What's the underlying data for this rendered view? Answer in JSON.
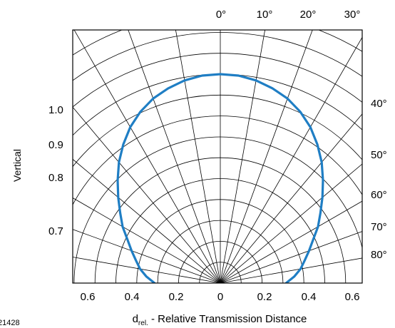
{
  "chart_data": {
    "type": "polar",
    "title": "",
    "xlabel_main": "d",
    "xlabel_sub": "rel.",
    "xlabel_rest": " - Relative Transmission Distance",
    "ylabel": "Vertical",
    "figure_id": "21428",
    "angle_tick_labels": [
      "0°",
      "10°",
      "20°",
      "30°",
      "40°",
      "50°",
      "60°",
      "70°",
      "80°"
    ],
    "y_tick_labels": [
      "1.0",
      "0.9",
      "0.8",
      "0.7"
    ],
    "x_tick_labels": [
      "0.6",
      "0.4",
      "0.2",
      "0",
      "0.2",
      "0.4",
      "0.6"
    ],
    "angle_range_deg": [
      -90,
      90
    ],
    "series": [
      {
        "color": "#1f7ec4",
        "points": [
          {
            "angle_deg": 0,
            "d_rel": 1.0
          },
          {
            "angle_deg": 5,
            "d_rel": 0.997
          },
          {
            "angle_deg": 10,
            "d_rel": 0.985
          },
          {
            "angle_deg": 15,
            "d_rel": 0.965
          },
          {
            "angle_deg": 20,
            "d_rel": 0.94
          },
          {
            "angle_deg": 25,
            "d_rel": 0.905
          },
          {
            "angle_deg": 30,
            "d_rel": 0.862
          },
          {
            "angle_deg": 35,
            "d_rel": 0.81
          },
          {
            "angle_deg": 40,
            "d_rel": 0.755
          },
          {
            "angle_deg": 45,
            "d_rel": 0.695
          },
          {
            "angle_deg": 50,
            "d_rel": 0.638
          },
          {
            "angle_deg": 55,
            "d_rel": 0.585
          },
          {
            "angle_deg": 60,
            "d_rel": 0.54
          },
          {
            "angle_deg": 65,
            "d_rel": 0.49
          },
          {
            "angle_deg": 70,
            "d_rel": 0.452
          },
          {
            "angle_deg": 75,
            "d_rel": 0.418
          },
          {
            "angle_deg": 80,
            "d_rel": 0.39
          },
          {
            "angle_deg": 85,
            "d_rel": 0.355
          },
          {
            "angle_deg": 90,
            "d_rel": 0.315
          }
        ]
      }
    ]
  }
}
